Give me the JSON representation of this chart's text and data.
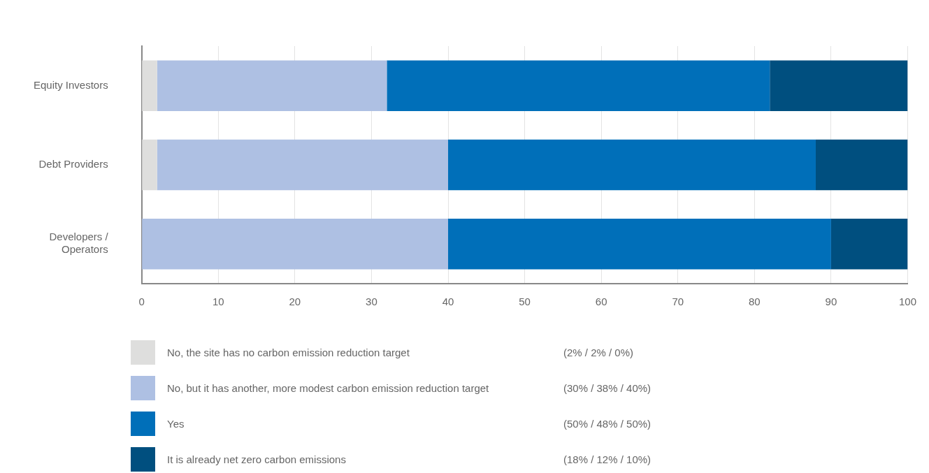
{
  "chart_data": {
    "type": "bar",
    "orientation": "horizontal",
    "stacked": true,
    "categories": [
      "Equity Investors",
      "Debt Providers",
      "Developers / Operators"
    ],
    "series": [
      {
        "name": "No, the site has no carbon emission reduction target",
        "color": "#dededd",
        "values": [
          2,
          2,
          0
        ]
      },
      {
        "name": "No, but it has another, more modest carbon emission reduction target",
        "color": "#aec0e3",
        "values": [
          30,
          38,
          40
        ]
      },
      {
        "name": "Yes",
        "color": "#006fb9",
        "values": [
          50,
          48,
          50
        ]
      },
      {
        "name": "It is already net zero carbon emissions",
        "color": "#004f7f",
        "values": [
          18,
          12,
          10
        ]
      }
    ],
    "xlim": [
      0,
      100
    ],
    "xticks": [
      0,
      10,
      20,
      30,
      40,
      50,
      60,
      70,
      80,
      90,
      100
    ],
    "grid": "x",
    "legend": "bottom",
    "annotations": [
      "(2% / 2% / 0%)",
      "(30% / 38% / 40%)",
      "(50% / 48% / 50%)",
      "(18% / 12% / 10%)"
    ]
  }
}
